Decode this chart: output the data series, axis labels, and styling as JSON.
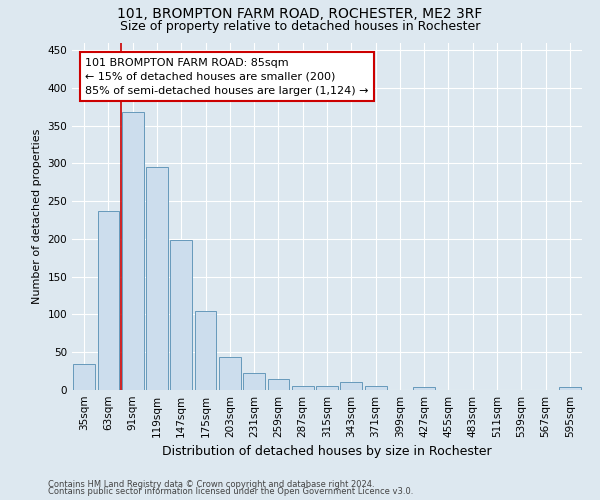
{
  "title": "101, BROMPTON FARM ROAD, ROCHESTER, ME2 3RF",
  "subtitle": "Size of property relative to detached houses in Rochester",
  "xlabel": "Distribution of detached houses by size in Rochester",
  "ylabel": "Number of detached properties",
  "categories": [
    "35sqm",
    "63sqm",
    "91sqm",
    "119sqm",
    "147sqm",
    "175sqm",
    "203sqm",
    "231sqm",
    "259sqm",
    "287sqm",
    "315sqm",
    "343sqm",
    "371sqm",
    "399sqm",
    "427sqm",
    "455sqm",
    "483sqm",
    "511sqm",
    "539sqm",
    "567sqm",
    "595sqm"
  ],
  "values": [
    35,
    237,
    368,
    295,
    199,
    105,
    44,
    22,
    14,
    5,
    5,
    11,
    5,
    0,
    4,
    0,
    0,
    0,
    0,
    0,
    4
  ],
  "bar_color": "#ccdded",
  "bar_edge_color": "#6699bb",
  "background_color": "#dde8f0",
  "grid_color": "#ffffff",
  "annotation_text": "101 BROMPTON FARM ROAD: 85sqm\n← 15% of detached houses are smaller (200)\n85% of semi-detached houses are larger (1,124) →",
  "annotation_box_color": "#ffffff",
  "annotation_box_edge_color": "#cc0000",
  "property_line_color": "#cc0000",
  "property_line_x": 1.5,
  "ylim": [
    0,
    460
  ],
  "yticks": [
    0,
    50,
    100,
    150,
    200,
    250,
    300,
    350,
    400,
    450
  ],
  "footnote1": "Contains HM Land Registry data © Crown copyright and database right 2024.",
  "footnote2": "Contains public sector information licensed under the Open Government Licence v3.0.",
  "title_fontsize": 10,
  "subtitle_fontsize": 9,
  "xlabel_fontsize": 9,
  "ylabel_fontsize": 8,
  "tick_fontsize": 7.5,
  "annot_fontsize": 8,
  "footnote_fontsize": 6
}
